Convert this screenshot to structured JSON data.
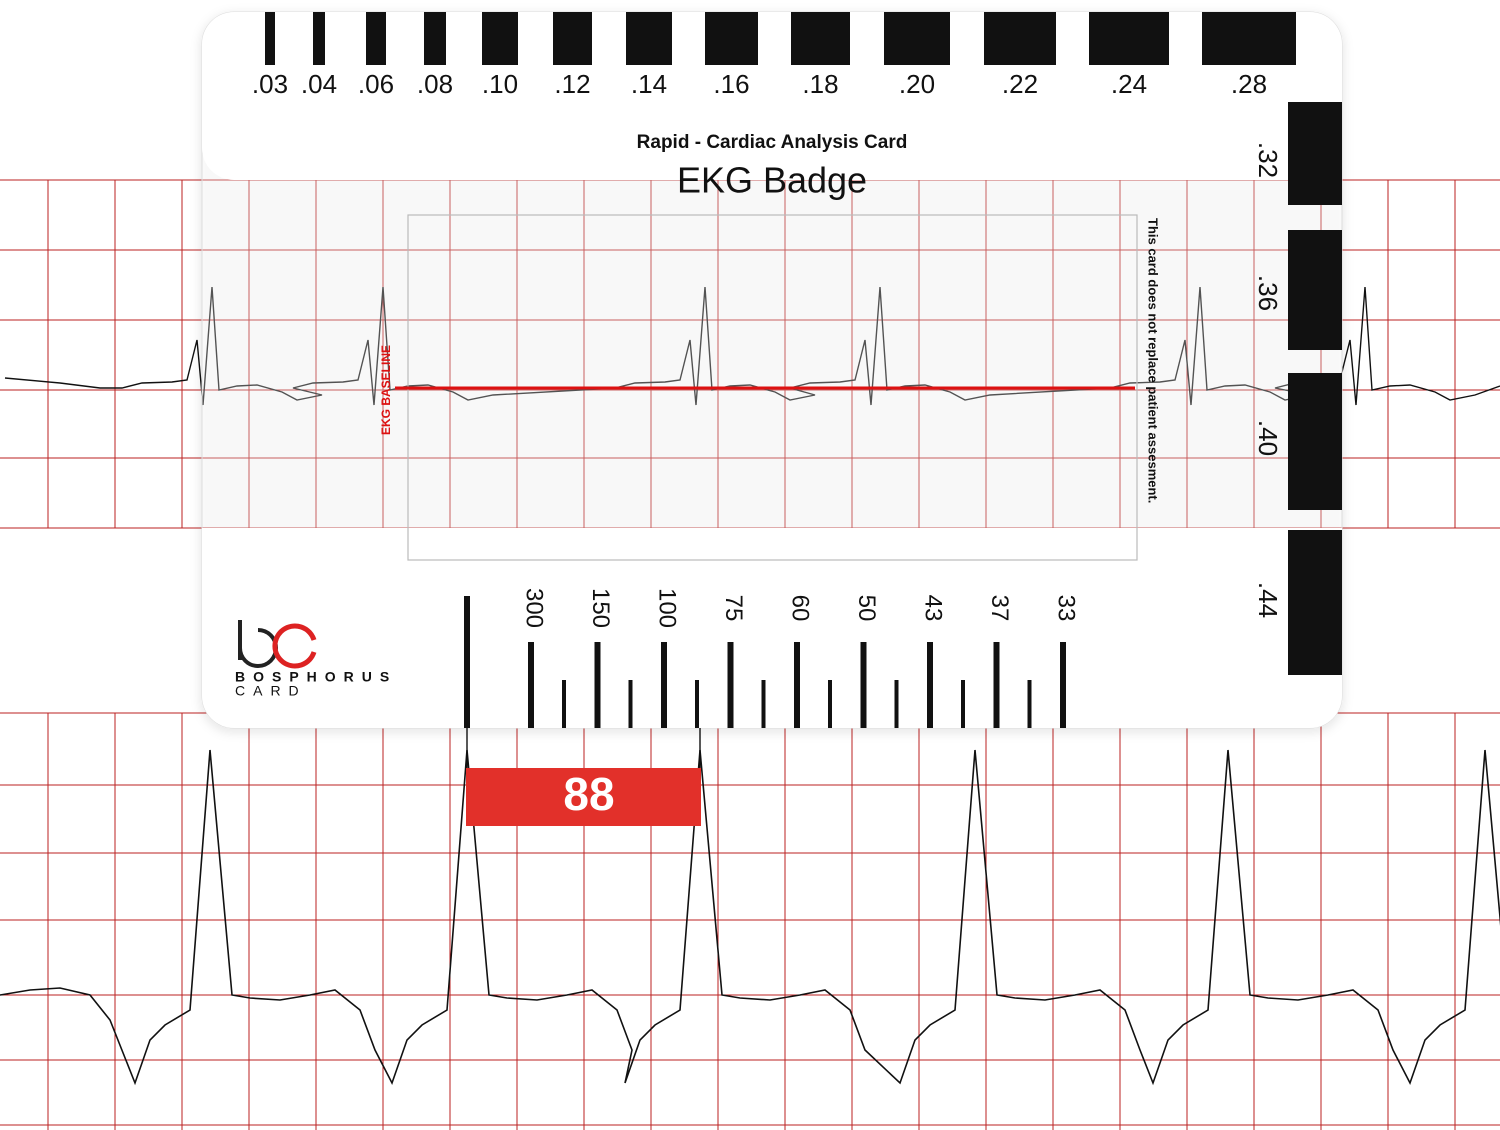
{
  "card": {
    "subtitle": "Rapid - Cardiac Analysis Card",
    "title": "EKG Badge",
    "interval_scale": [
      ".03",
      ".04",
      ".06",
      ".08",
      ".10",
      ".12",
      ".14",
      ".16",
      ".18",
      ".20",
      ".22",
      ".24",
      ".28"
    ],
    "qt_scale": [
      ".32",
      ".36",
      ".40",
      ".44"
    ],
    "baseline_label": "EKG BASELINE",
    "disclaimer": "This card does not replace patient assesment.",
    "rate_scale": [
      "300",
      "150",
      "100",
      "75",
      "60",
      "50",
      "43",
      "37",
      "33"
    ],
    "brand": {
      "name": "BOSPHORUS",
      "sub": "CARD"
    }
  },
  "rate_reading": "88"
}
